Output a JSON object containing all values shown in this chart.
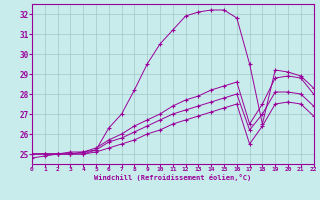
{
  "xlabel": "Windchill (Refroidissement éolien,°C)",
  "bg_color": "#c8ecec",
  "grid_color": "#a0c8c8",
  "line_color": "#990099",
  "xlim": [
    0,
    22
  ],
  "ylim": [
    24.5,
    32.5
  ],
  "yticks": [
    25,
    26,
    27,
    28,
    29,
    30,
    31,
    32
  ],
  "xticks": [
    0,
    1,
    2,
    3,
    4,
    5,
    6,
    7,
    8,
    9,
    10,
    11,
    12,
    13,
    14,
    15,
    16,
    17,
    18,
    19,
    20,
    21,
    22
  ],
  "series1_x": [
    0,
    1,
    2,
    3,
    4,
    5,
    6,
    7,
    8,
    9,
    10,
    11,
    12,
    13,
    14,
    15,
    16,
    17,
    18,
    19,
    20,
    21,
    22
  ],
  "series1_y": [
    24.8,
    24.9,
    25.0,
    25.0,
    25.0,
    25.2,
    26.3,
    27.0,
    28.2,
    29.5,
    30.5,
    31.2,
    31.9,
    32.1,
    32.2,
    32.2,
    31.8,
    29.5,
    26.5,
    29.2,
    29.1,
    28.9,
    28.3
  ],
  "series2_x": [
    0,
    1,
    2,
    3,
    4,
    5,
    6,
    7,
    8,
    9,
    10,
    11,
    12,
    13,
    14,
    15,
    16,
    17,
    18,
    19,
    20,
    21,
    22
  ],
  "series2_y": [
    25.0,
    25.0,
    25.0,
    25.1,
    25.1,
    25.3,
    25.7,
    26.0,
    26.4,
    26.7,
    27.0,
    27.4,
    27.7,
    27.9,
    28.2,
    28.4,
    28.6,
    26.5,
    27.5,
    28.8,
    28.9,
    28.8,
    28.0
  ],
  "series3_x": [
    0,
    1,
    2,
    3,
    4,
    5,
    6,
    7,
    8,
    9,
    10,
    11,
    12,
    13,
    14,
    15,
    16,
    17,
    18,
    19,
    20,
    21,
    22
  ],
  "series3_y": [
    25.0,
    25.0,
    25.0,
    25.0,
    25.1,
    25.2,
    25.6,
    25.8,
    26.1,
    26.4,
    26.7,
    27.0,
    27.2,
    27.4,
    27.6,
    27.8,
    28.0,
    26.2,
    27.0,
    28.1,
    28.1,
    28.0,
    27.4
  ],
  "series4_x": [
    0,
    1,
    2,
    3,
    4,
    5,
    6,
    7,
    8,
    9,
    10,
    11,
    12,
    13,
    14,
    15,
    16,
    17,
    18,
    19,
    20,
    21,
    22
  ],
  "series4_y": [
    25.0,
    25.0,
    25.0,
    25.0,
    25.0,
    25.1,
    25.3,
    25.5,
    25.7,
    26.0,
    26.2,
    26.5,
    26.7,
    26.9,
    27.1,
    27.3,
    27.5,
    25.5,
    26.4,
    27.5,
    27.6,
    27.5,
    26.9
  ]
}
